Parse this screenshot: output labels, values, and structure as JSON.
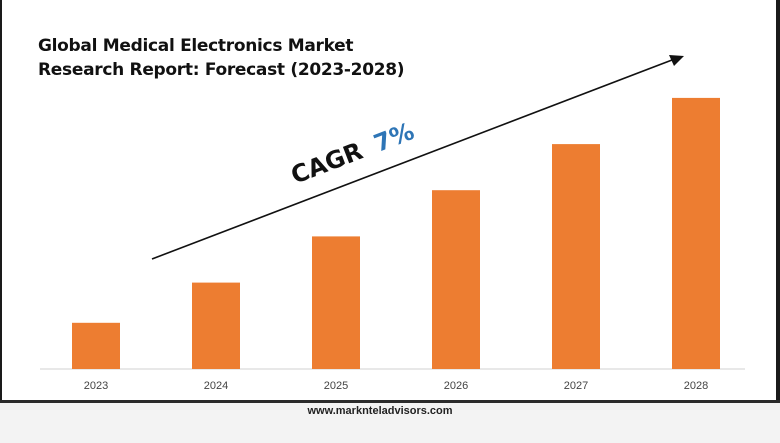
{
  "chart_data": {
    "type": "bar",
    "title_lines": [
      "Global Medical Electronics Market",
      "Research Report: Forecast (2023-2028)"
    ],
    "categories": [
      "2023",
      "2024",
      "2025",
      "2026",
      "2027",
      "2028"
    ],
    "values": [
      1.0,
      1.87,
      2.87,
      3.87,
      4.87,
      5.87
    ],
    "bar_color": "#ed7d31",
    "ylim": [
      0,
      6.3
    ],
    "grid": false,
    "annotation": {
      "label": "CAGR",
      "value": "7%",
      "label_color": "#111111",
      "value_color": "#2e75b6"
    }
  },
  "footer": {
    "url": "www.marknteladvisors.com"
  }
}
